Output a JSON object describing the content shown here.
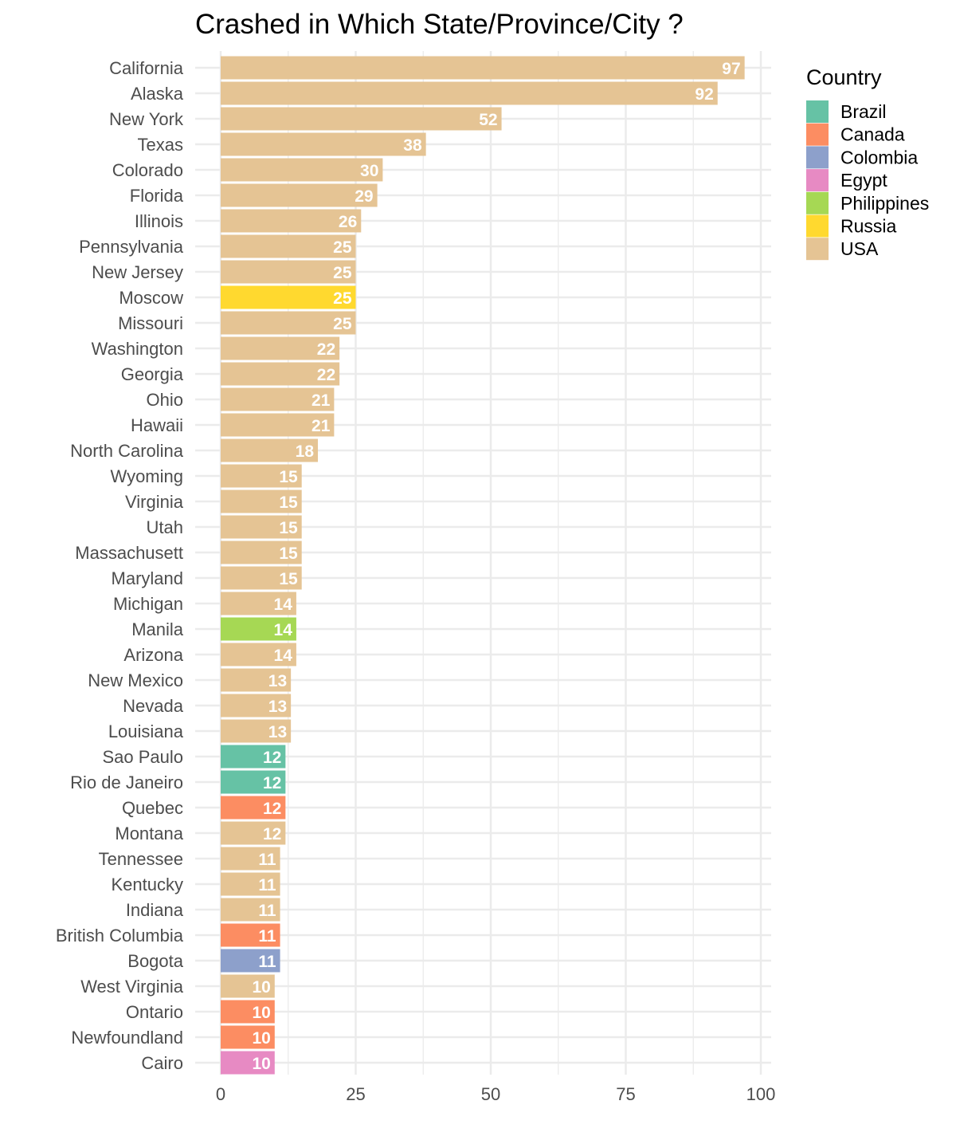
{
  "chart_data": {
    "type": "bar",
    "orientation": "horizontal",
    "title": "Crashed in Which State/Province/City ?",
    "xlabel": "",
    "ylabel": "",
    "xlim": [
      0,
      100
    ],
    "x_ticks": [
      0,
      25,
      50,
      75,
      100
    ],
    "grid": true,
    "legend_placement": "right",
    "legend_title": "Country",
    "legend": [
      {
        "name": "Brazil",
        "color": "#66c2a5"
      },
      {
        "name": "Canada",
        "color": "#fc8d62"
      },
      {
        "name": "Colombia",
        "color": "#8da0cb"
      },
      {
        "name": "Egypt",
        "color": "#e78ac3"
      },
      {
        "name": "Philippines",
        "color": "#a6d854"
      },
      {
        "name": "Russia",
        "color": "#ffd92f"
      },
      {
        "name": "USA",
        "color": "#e5c494"
      }
    ],
    "bars": [
      {
        "category": "California",
        "value": 97,
        "country": "USA"
      },
      {
        "category": "Alaska",
        "value": 92,
        "country": "USA"
      },
      {
        "category": "New York",
        "value": 52,
        "country": "USA"
      },
      {
        "category": "Texas",
        "value": 38,
        "country": "USA"
      },
      {
        "category": "Colorado",
        "value": 30,
        "country": "USA"
      },
      {
        "category": "Florida",
        "value": 29,
        "country": "USA"
      },
      {
        "category": "Illinois",
        "value": 26,
        "country": "USA"
      },
      {
        "category": "Pennsylvania",
        "value": 25,
        "country": "USA"
      },
      {
        "category": "New Jersey",
        "value": 25,
        "country": "USA"
      },
      {
        "category": "Moscow",
        "value": 25,
        "country": "Russia"
      },
      {
        "category": "Missouri",
        "value": 25,
        "country": "USA"
      },
      {
        "category": "Washington",
        "value": 22,
        "country": "USA"
      },
      {
        "category": "Georgia",
        "value": 22,
        "country": "USA"
      },
      {
        "category": "Ohio",
        "value": 21,
        "country": "USA"
      },
      {
        "category": "Hawaii",
        "value": 21,
        "country": "USA"
      },
      {
        "category": "North Carolina",
        "value": 18,
        "country": "USA"
      },
      {
        "category": "Wyoming",
        "value": 15,
        "country": "USA"
      },
      {
        "category": "Virginia",
        "value": 15,
        "country": "USA"
      },
      {
        "category": "Utah",
        "value": 15,
        "country": "USA"
      },
      {
        "category": "Massachusett",
        "value": 15,
        "country": "USA"
      },
      {
        "category": "Maryland",
        "value": 15,
        "country": "USA"
      },
      {
        "category": "Michigan",
        "value": 14,
        "country": "USA"
      },
      {
        "category": "Manila",
        "value": 14,
        "country": "Philippines"
      },
      {
        "category": "Arizona",
        "value": 14,
        "country": "USA"
      },
      {
        "category": "New Mexico",
        "value": 13,
        "country": "USA"
      },
      {
        "category": "Nevada",
        "value": 13,
        "country": "USA"
      },
      {
        "category": "Louisiana",
        "value": 13,
        "country": "USA"
      },
      {
        "category": "Sao Paulo",
        "value": 12,
        "country": "Brazil"
      },
      {
        "category": "Rio de Janeiro",
        "value": 12,
        "country": "Brazil"
      },
      {
        "category": "Quebec",
        "value": 12,
        "country": "Canada"
      },
      {
        "category": "Montana",
        "value": 12,
        "country": "USA"
      },
      {
        "category": "Tennessee",
        "value": 11,
        "country": "USA"
      },
      {
        "category": "Kentucky",
        "value": 11,
        "country": "USA"
      },
      {
        "category": "Indiana",
        "value": 11,
        "country": "USA"
      },
      {
        "category": "British Columbia",
        "value": 11,
        "country": "Canada"
      },
      {
        "category": "Bogota",
        "value": 11,
        "country": "Colombia"
      },
      {
        "category": "West Virginia",
        "value": 10,
        "country": "USA"
      },
      {
        "category": "Ontario",
        "value": 10,
        "country": "Canada"
      },
      {
        "category": "Newfoundland",
        "value": 10,
        "country": "Canada"
      },
      {
        "category": "Cairo",
        "value": 10,
        "country": "Egypt"
      }
    ]
  }
}
